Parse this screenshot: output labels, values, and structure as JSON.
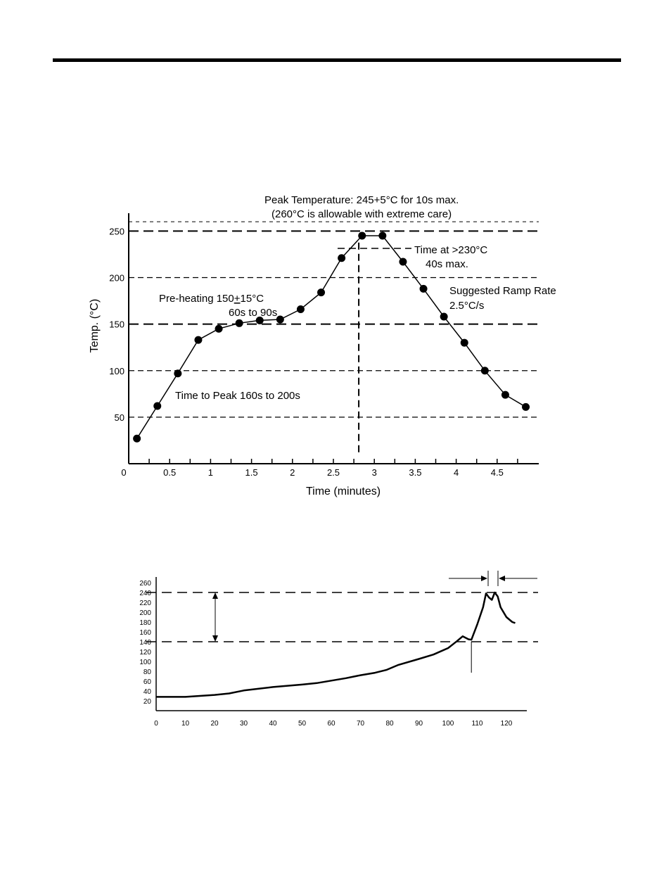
{
  "chart_data": [
    {
      "type": "line",
      "xlabel": "Time (minutes)",
      "ylabel": "Temp. (°C)",
      "xlim": [
        0,
        4.85
      ],
      "ylim": [
        0,
        270
      ],
      "x_ticks": [
        "0",
        "0.5",
        "1",
        "1.5",
        "2",
        "2.5",
        "3",
        "3.5",
        "4",
        "4.5"
      ],
      "y_ticks": [
        "50",
        "100",
        "150",
        "200",
        "250"
      ],
      "series": [
        {
          "x": [
            0.1,
            0.35,
            0.6,
            0.85,
            1.1,
            1.35,
            1.6,
            1.85,
            2.1,
            2.35,
            2.6,
            2.85,
            3.1,
            3.35,
            3.6,
            3.85,
            4.1,
            4.35,
            4.6,
            4.85
          ],
          "values": [
            27,
            62,
            97,
            133,
            145,
            151,
            154,
            155,
            166,
            184,
            221,
            245,
            245,
            217,
            188,
            158,
            130,
            100,
            74,
            61
          ]
        }
      ],
      "reference_lines": [
        50,
        100,
        150,
        200,
        250,
        260
      ],
      "vertical_marker_x": 2.81,
      "grid": false,
      "annotations": {
        "peak_line1": "Peak Temperature: 245+5°C for 10s max.",
        "peak_line2": "(260°C is allowable with extreme care)",
        "tal_line1": "Time at >230°C",
        "tal_line2": "40s max.",
        "ramp_line1": "Suggested Ramp Rate",
        "ramp_line2": "2.5°C/s",
        "preheat_prefix": "Pre-heating 150",
        "preheat_pm": "+",
        "preheat_suffix": "15°C",
        "preheat_line2": "60s to 90s",
        "ttp": "Time to Peak 160s to 200s"
      }
    },
    {
      "type": "line",
      "xlim": [
        0,
        125
      ],
      "ylim": [
        0,
        260
      ],
      "x_ticks": [
        "0",
        "10",
        "20",
        "30",
        "40",
        "50",
        "60",
        "70",
        "80",
        "90",
        "100",
        "110",
        "120"
      ],
      "y_ticks": [
        "20",
        "40",
        "60",
        "80",
        "100",
        "120",
        "140",
        "160",
        "180",
        "200",
        "220",
        "240",
        "260"
      ],
      "series": [
        {
          "x": [
            0,
            10,
            15,
            20,
            25,
            30,
            40,
            50,
            55,
            60,
            65,
            70,
            75,
            79,
            83,
            90,
            95,
            100,
            103,
            105,
            106,
            107,
            108,
            110,
            112,
            113,
            114,
            115,
            116,
            117,
            118,
            120,
            122,
            123
          ],
          "values": [
            28,
            28,
            30,
            32,
            35,
            41,
            48,
            53,
            56,
            61,
            66,
            72,
            77,
            83,
            93,
            105,
            114,
            127,
            141,
            151,
            148,
            145,
            144,
            175,
            210,
            238,
            230,
            225,
            240,
            232,
            210,
            190,
            180,
            178
          ]
        }
      ],
      "reference_lines": [
        140,
        240
      ],
      "vertical_marker_x": 108,
      "grid": false
    }
  ]
}
